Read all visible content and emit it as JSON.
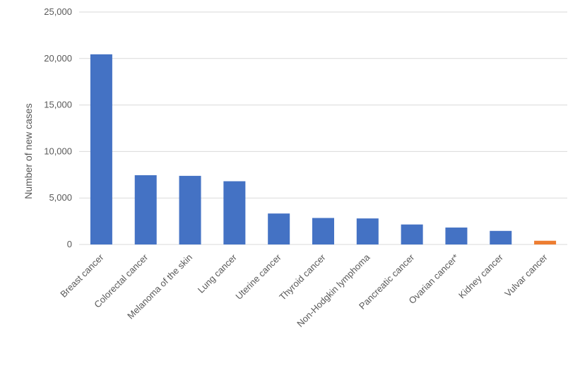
{
  "chart_data": {
    "type": "bar",
    "title": "",
    "xlabel": "",
    "ylabel": "Number of new cases",
    "ylim": [
      0,
      25000
    ],
    "yticks": [
      0,
      5000,
      10000,
      15000,
      20000,
      25000
    ],
    "ytick_labels": [
      "0",
      "5,000",
      "10,000",
      "15,000",
      "20,000",
      "25,000"
    ],
    "grid": true,
    "legend": "none",
    "categories": [
      "Breast cancer",
      "Colorectal cancer",
      "Melanoma of the skin",
      "Lung cancer",
      "Uterine cancer",
      "Thyroid cancer",
      "Non-Hodgkin lymphoma",
      "Pancreatic cancer",
      "Ovarian cancer*",
      "Kidney cancer",
      "Vulvar cancer"
    ],
    "values": [
      20450,
      7450,
      7380,
      6800,
      3330,
      2850,
      2800,
      2150,
      1820,
      1460,
      400
    ],
    "colors": [
      "#4472c4",
      "#4472c4",
      "#4472c4",
      "#4472c4",
      "#4472c4",
      "#4472c4",
      "#4472c4",
      "#4472c4",
      "#4472c4",
      "#4472c4",
      "#ed7d31"
    ]
  }
}
